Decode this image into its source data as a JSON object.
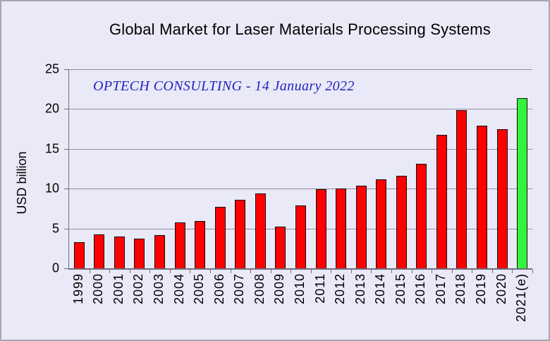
{
  "chart_data": {
    "type": "bar",
    "title": "Global Market for Laser Materials Processing Systems",
    "annotation": "OPTECH CONSULTING - 14 January 2022",
    "xlabel": "",
    "ylabel": "USD billion",
    "ylim": [
      0,
      25
    ],
    "yticks": [
      0,
      5,
      10,
      15,
      20,
      25
    ],
    "grid": "horizontal",
    "legend": "none",
    "categories": [
      "1999",
      "2000",
      "2001",
      "2002",
      "2003",
      "2004",
      "2005",
      "2006",
      "2007",
      "2008",
      "2009",
      "2010",
      "2011",
      "2012",
      "2013",
      "2014",
      "2015",
      "2016",
      "2017",
      "2018",
      "2019",
      "2020",
      "2021(e)"
    ],
    "values": [
      3.3,
      4.3,
      4.0,
      3.7,
      4.2,
      5.8,
      5.9,
      7.7,
      8.6,
      9.4,
      5.2,
      7.9,
      9.9,
      10.0,
      10.4,
      11.2,
      11.6,
      13.1,
      16.8,
      19.9,
      17.9,
      17.5,
      21.4
    ],
    "colors": [
      "#FE0000",
      "#FE0000",
      "#FE0000",
      "#FE0000",
      "#FE0000",
      "#FE0000",
      "#FE0000",
      "#FE0000",
      "#FE0000",
      "#FE0000",
      "#FE0000",
      "#FE0000",
      "#FE0000",
      "#FE0000",
      "#FE0000",
      "#FE0000",
      "#FE0000",
      "#FE0000",
      "#FE0000",
      "#FE0000",
      "#FE0000",
      "#FE0000",
      "#33F33C"
    ]
  },
  "style": {
    "background": "#E9E9F8",
    "frame_border": "#A6A6B4",
    "grid_color": "#8D8D9D",
    "axis_color": "#70707C",
    "bar_default": "#FE0000",
    "bar_estimate": "#33F33C",
    "annotation_color": "#2323BE",
    "text_color": "#000000"
  }
}
